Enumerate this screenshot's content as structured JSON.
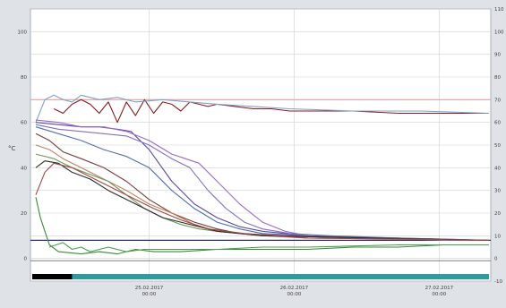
{
  "chart_data": {
    "type": "line",
    "title": "",
    "xlabel": "",
    "ylabel": "°C",
    "ylim": [
      -10,
      110
    ],
    "y_ticks_left": [
      0,
      20,
      40,
      60,
      80,
      100
    ],
    "y_ticks_right": [
      -10,
      0,
      10,
      20,
      30,
      40,
      50,
      60,
      70,
      80,
      90,
      100,
      110
    ],
    "xlim": [
      0,
      100
    ],
    "x_ticks": [
      {
        "x": 25,
        "date": "25.02.2017",
        "time": "00:00"
      },
      {
        "x": 57,
        "date": "26.02.2017",
        "time": "00:00"
      },
      {
        "x": 89,
        "date": "27.02.2017",
        "time": "00:00"
      }
    ],
    "reference_lines": [
      {
        "y": 70,
        "color": "#e9a0a0"
      },
      {
        "y": 8,
        "color": "#2d2d7a"
      },
      {
        "y": -1,
        "color": "#8a8a8a"
      }
    ],
    "grid": true,
    "legend": "none",
    "series": [
      {
        "color": "#8b1a1a",
        "values": [
          [
            4,
            66
          ],
          [
            6,
            64
          ],
          [
            8,
            68
          ],
          [
            10,
            70
          ],
          [
            12,
            68
          ],
          [
            14,
            64
          ],
          [
            16,
            69
          ],
          [
            18,
            60
          ],
          [
            20,
            69
          ],
          [
            22,
            63
          ],
          [
            24,
            70
          ],
          [
            26,
            64
          ],
          [
            28,
            69
          ],
          [
            30,
            68
          ],
          [
            32,
            65
          ],
          [
            34,
            69
          ],
          [
            36,
            68
          ],
          [
            38,
            67
          ],
          [
            40,
            68
          ],
          [
            44,
            67
          ],
          [
            48,
            66
          ],
          [
            52,
            66
          ],
          [
            56,
            65
          ],
          [
            60,
            65
          ],
          [
            70,
            65
          ],
          [
            80,
            64
          ],
          [
            90,
            64
          ],
          [
            100,
            64
          ]
        ]
      },
      {
        "color": "#7fa0c8",
        "values": [
          [
            0,
            60
          ],
          [
            2,
            70
          ],
          [
            4,
            72
          ],
          [
            6,
            70
          ],
          [
            8,
            69
          ],
          [
            10,
            72
          ],
          [
            14,
            70
          ],
          [
            18,
            71
          ],
          [
            22,
            69
          ],
          [
            28,
            70
          ],
          [
            34,
            69
          ],
          [
            40,
            68
          ],
          [
            48,
            67
          ],
          [
            56,
            66
          ],
          [
            70,
            65
          ],
          [
            85,
            65
          ],
          [
            100,
            64
          ]
        ]
      },
      {
        "color": "#5a4aa0",
        "values": [
          [
            0,
            60
          ],
          [
            5,
            59
          ],
          [
            10,
            58
          ],
          [
            14,
            58
          ],
          [
            18,
            57
          ],
          [
            21,
            56
          ],
          [
            25,
            48
          ],
          [
            30,
            34
          ],
          [
            35,
            24
          ],
          [
            40,
            18
          ],
          [
            45,
            14
          ],
          [
            50,
            12
          ],
          [
            55,
            11
          ],
          [
            60,
            10
          ],
          [
            70,
            9
          ],
          [
            80,
            9
          ],
          [
            90,
            8
          ],
          [
            100,
            8
          ]
        ]
      },
      {
        "color": "#9b6ac8",
        "values": [
          [
            0,
            61
          ],
          [
            5,
            60
          ],
          [
            10,
            58
          ],
          [
            15,
            58
          ],
          [
            20,
            56
          ],
          [
            25,
            52
          ],
          [
            30,
            46
          ],
          [
            33,
            44
          ],
          [
            36,
            42
          ],
          [
            40,
            34
          ],
          [
            45,
            24
          ],
          [
            50,
            16
          ],
          [
            55,
            12
          ],
          [
            60,
            10
          ],
          [
            70,
            9
          ],
          [
            80,
            9
          ],
          [
            90,
            8
          ],
          [
            100,
            8
          ]
        ]
      },
      {
        "color": "#8070c0",
        "values": [
          [
            0,
            59
          ],
          [
            5,
            57
          ],
          [
            10,
            56
          ],
          [
            15,
            55
          ],
          [
            20,
            54
          ],
          [
            25,
            50
          ],
          [
            30,
            44
          ],
          [
            34,
            40
          ],
          [
            38,
            30
          ],
          [
            42,
            22
          ],
          [
            46,
            16
          ],
          [
            50,
            13
          ],
          [
            56,
            11
          ],
          [
            65,
            10
          ],
          [
            80,
            9
          ],
          [
            100,
            8
          ]
        ]
      },
      {
        "color": "#5070b0",
        "values": [
          [
            0,
            58
          ],
          [
            5,
            55
          ],
          [
            10,
            52
          ],
          [
            15,
            48
          ],
          [
            20,
            45
          ],
          [
            25,
            40
          ],
          [
            30,
            30
          ],
          [
            35,
            22
          ],
          [
            40,
            16
          ],
          [
            45,
            13
          ],
          [
            50,
            11
          ],
          [
            60,
            10
          ],
          [
            80,
            9
          ],
          [
            100,
            8
          ]
        ]
      },
      {
        "color": "#7a3a3a",
        "values": [
          [
            0,
            55
          ],
          [
            3,
            52
          ],
          [
            6,
            47
          ],
          [
            10,
            44
          ],
          [
            15,
            40
          ],
          [
            20,
            34
          ],
          [
            25,
            26
          ],
          [
            30,
            20
          ],
          [
            35,
            16
          ],
          [
            40,
            13
          ],
          [
            45,
            11
          ],
          [
            55,
            10
          ],
          [
            70,
            9
          ],
          [
            100,
            8
          ]
        ]
      },
      {
        "color": "#c08060",
        "values": [
          [
            0,
            50
          ],
          [
            3,
            48
          ],
          [
            6,
            44
          ],
          [
            10,
            40
          ],
          [
            15,
            35
          ],
          [
            20,
            30
          ],
          [
            25,
            24
          ],
          [
            30,
            20
          ],
          [
            35,
            15
          ],
          [
            40,
            12
          ],
          [
            50,
            10
          ],
          [
            60,
            9
          ],
          [
            100,
            8
          ]
        ]
      },
      {
        "color": "#6a9a5a",
        "values": [
          [
            0,
            46
          ],
          [
            4,
            44
          ],
          [
            8,
            40
          ],
          [
            12,
            37
          ],
          [
            16,
            34
          ],
          [
            20,
            28
          ],
          [
            24,
            22
          ],
          [
            28,
            18
          ],
          [
            32,
            15
          ],
          [
            36,
            13
          ],
          [
            40,
            12
          ],
          [
            50,
            10
          ],
          [
            100,
            8
          ]
        ]
      },
      {
        "color": "#2a2a2a",
        "values": [
          [
            0,
            40
          ],
          [
            2,
            43
          ],
          [
            5,
            42
          ],
          [
            8,
            38
          ],
          [
            12,
            35
          ],
          [
            16,
            30
          ],
          [
            20,
            26
          ],
          [
            24,
            22
          ],
          [
            28,
            18
          ],
          [
            32,
            16
          ],
          [
            36,
            14
          ],
          [
            40,
            12
          ],
          [
            50,
            10
          ],
          [
            100,
            8
          ]
        ]
      },
      {
        "color": "#a04848",
        "values": [
          [
            0,
            28
          ],
          [
            2,
            38
          ],
          [
            4,
            42
          ],
          [
            8,
            40
          ],
          [
            12,
            36
          ],
          [
            16,
            32
          ],
          [
            20,
            28
          ],
          [
            26,
            22
          ],
          [
            32,
            17
          ],
          [
            38,
            13
          ],
          [
            46,
            11
          ],
          [
            60,
            9
          ],
          [
            100,
            8
          ]
        ]
      },
      {
        "color": "#3a8a3a",
        "values": [
          [
            0,
            27
          ],
          [
            1,
            18
          ],
          [
            2,
            12
          ],
          [
            3,
            6
          ],
          [
            5,
            3
          ],
          [
            10,
            2
          ],
          [
            14,
            3
          ],
          [
            18,
            2
          ],
          [
            22,
            4
          ],
          [
            26,
            3
          ],
          [
            32,
            3
          ],
          [
            40,
            4
          ],
          [
            50,
            4
          ],
          [
            60,
            4
          ],
          [
            70,
            5
          ],
          [
            80,
            5
          ],
          [
            90,
            6
          ],
          [
            100,
            6
          ]
        ]
      },
      {
        "color": "#4aa04a",
        "values": [
          [
            3,
            5
          ],
          [
            6,
            7
          ],
          [
            8,
            4
          ],
          [
            10,
            5
          ],
          [
            12,
            3
          ],
          [
            16,
            5
          ],
          [
            20,
            3
          ],
          [
            24,
            4
          ],
          [
            30,
            4
          ],
          [
            40,
            4
          ],
          [
            50,
            5
          ],
          [
            60,
            5
          ],
          [
            80,
            6
          ],
          [
            100,
            6
          ]
        ]
      }
    ],
    "timeline_bar": {
      "segment_end": 8,
      "segment_color": "#000000",
      "rest_color": "#2e9c9c"
    }
  }
}
